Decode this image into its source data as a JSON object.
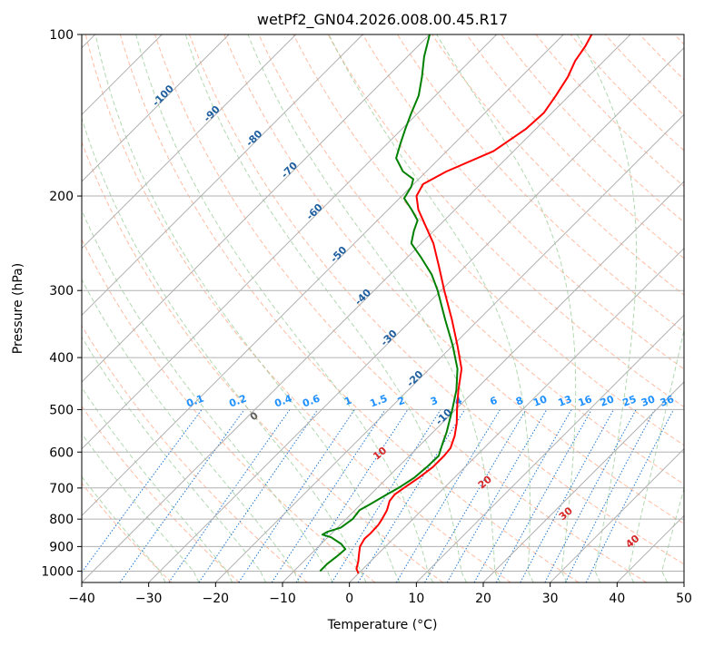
{
  "chart_data": {
    "type": "line",
    "subtype": "skew-t log-p",
    "title": "wetPf2_GN04.2026.008.00.45.R17",
    "xlabel": "Temperature (°C)",
    "ylabel": "Pressure (hPa)",
    "xlim": [
      -40,
      50
    ],
    "ylim": [
      1050,
      100
    ],
    "y_scale": "log",
    "x_ticks": [
      -40,
      -30,
      -20,
      -10,
      0,
      10,
      20,
      30,
      40,
      50
    ],
    "x_tick_labels": [
      "−40",
      "−30",
      "−20",
      "−10",
      "0",
      "10",
      "20",
      "30",
      "40",
      "50"
    ],
    "y_ticks": [
      1000,
      900,
      800,
      700,
      600,
      500,
      400,
      300,
      200,
      100
    ],
    "y_tick_labels": [
      "1000",
      "900",
      "800",
      "700",
      "600",
      "500",
      "400",
      "300",
      "200",
      "100"
    ],
    "grid": true,
    "colors": {
      "temperature": "#ff0000",
      "dewpoint": "#008000",
      "isotherm": "#b0b0b0",
      "dry_adiabat": "#ffa07a",
      "moist_adiabat": "#90c890",
      "mixing_ratio": "#1f77d4",
      "isotherm_label": "#1f5f9f",
      "mixing_label": "#1e90ff",
      "moist_label": "#d62728"
    },
    "series": [
      {
        "role": "temperature",
        "points": [
          {
            "p": 1010,
            "t": 0.0
          },
          {
            "p": 990,
            "t": -1.0
          },
          {
            "p": 960,
            "t": -1.8
          },
          {
            "p": 930,
            "t": -2.8
          },
          {
            "p": 900,
            "t": -3.8
          },
          {
            "p": 870,
            "t": -4.3
          },
          {
            "p": 850,
            "t": -4.2
          },
          {
            "p": 820,
            "t": -4.3
          },
          {
            "p": 800,
            "t": -4.6
          },
          {
            "p": 770,
            "t": -5.2
          },
          {
            "p": 740,
            "t": -6.2
          },
          {
            "p": 720,
            "t": -6.4
          },
          {
            "p": 700,
            "t": -6.0
          },
          {
            "p": 670,
            "t": -5.3
          },
          {
            "p": 640,
            "t": -4.8
          },
          {
            "p": 610,
            "t": -4.8
          },
          {
            "p": 590,
            "t": -5.0
          },
          {
            "p": 560,
            "t": -6.2
          },
          {
            "p": 530,
            "t": -7.8
          },
          {
            "p": 500,
            "t": -9.8
          },
          {
            "p": 460,
            "t": -12.5
          },
          {
            "p": 420,
            "t": -15.2
          },
          {
            "p": 380,
            "t": -19.3
          },
          {
            "p": 340,
            "t": -24.0
          },
          {
            "p": 300,
            "t": -29.5
          },
          {
            "p": 270,
            "t": -34.0
          },
          {
            "p": 245,
            "t": -38.2
          },
          {
            "p": 225,
            "t": -42.5
          },
          {
            "p": 212,
            "t": -45.5
          },
          {
            "p": 200,
            "t": -47.8
          },
          {
            "p": 190,
            "t": -48.6
          },
          {
            "p": 180,
            "t": -47.0
          },
          {
            "p": 165,
            "t": -43.0
          },
          {
            "p": 150,
            "t": -41.5
          },
          {
            "p": 140,
            "t": -41.2
          },
          {
            "p": 130,
            "t": -42.0
          },
          {
            "p": 120,
            "t": -43.0
          },
          {
            "p": 112,
            "t": -44.3
          },
          {
            "p": 105,
            "t": -45.0
          },
          {
            "p": 100,
            "t": -45.8
          }
        ]
      },
      {
        "role": "dewpoint",
        "points": [
          {
            "p": 1000,
            "t": -6.1
          },
          {
            "p": 970,
            "t": -6.1
          },
          {
            "p": 940,
            "t": -5.8
          },
          {
            "p": 910,
            "t": -5.6
          },
          {
            "p": 890,
            "t": -7.0
          },
          {
            "p": 865,
            "t": -9.5
          },
          {
            "p": 855,
            "t": -11.2
          },
          {
            "p": 845,
            "t": -10.9
          },
          {
            "p": 830,
            "t": -9.5
          },
          {
            "p": 800,
            "t": -9.0
          },
          {
            "p": 770,
            "t": -9.3
          },
          {
            "p": 750,
            "t": -8.6
          },
          {
            "p": 720,
            "t": -7.6
          },
          {
            "p": 700,
            "t": -6.8
          },
          {
            "p": 670,
            "t": -6.0
          },
          {
            "p": 640,
            "t": -5.7
          },
          {
            "p": 610,
            "t": -5.6
          },
          {
            "p": 580,
            "t": -6.8
          },
          {
            "p": 550,
            "t": -8.0
          },
          {
            "p": 500,
            "t": -10.5
          },
          {
            "p": 460,
            "t": -12.8
          },
          {
            "p": 420,
            "t": -15.8
          },
          {
            "p": 380,
            "t": -20.0
          },
          {
            "p": 340,
            "t": -25.0
          },
          {
            "p": 300,
            "t": -30.5
          },
          {
            "p": 280,
            "t": -33.8
          },
          {
            "p": 260,
            "t": -38.0
          },
          {
            "p": 245,
            "t": -41.5
          },
          {
            "p": 232,
            "t": -43.0
          },
          {
            "p": 222,
            "t": -44.0
          },
          {
            "p": 212,
            "t": -46.5
          },
          {
            "p": 202,
            "t": -49.3
          },
          {
            "p": 192,
            "t": -50.0
          },
          {
            "p": 186,
            "t": -50.8
          },
          {
            "p": 180,
            "t": -53.5
          },
          {
            "p": 170,
            "t": -56.5
          },
          {
            "p": 160,
            "t": -58.0
          },
          {
            "p": 150,
            "t": -59.5
          },
          {
            "p": 140,
            "t": -61.0
          },
          {
            "p": 130,
            "t": -62.5
          },
          {
            "p": 120,
            "t": -64.8
          },
          {
            "p": 110,
            "t": -67.5
          },
          {
            "p": 100,
            "t": -70.0
          }
        ]
      }
    ],
    "isotherm_labels": [
      "-100",
      "-90",
      "-80",
      "-70",
      "-60",
      "-50",
      "-40",
      "-30",
      "-20",
      "-10"
    ],
    "mixing_ratio_labels": [
      "0.1",
      "0.2",
      "0.4",
      "0.6",
      "1",
      "1.5",
      "2",
      "3",
      "4",
      "6",
      "8",
      "10",
      "13",
      "16",
      "20",
      "25",
      "30",
      "36"
    ],
    "moist_adiabat_labels": [
      "0",
      "10",
      "20",
      "30",
      "40"
    ]
  }
}
